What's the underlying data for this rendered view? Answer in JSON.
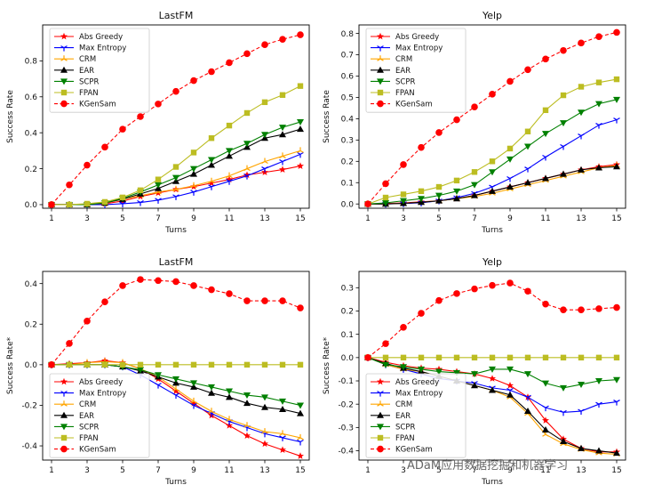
{
  "chart_data": [
    {
      "type": "line",
      "title": "LastFM",
      "xlabel": "Turns",
      "ylabel": "Success Rate",
      "ylim": [
        -0.02,
        1.0
      ],
      "yticks": [
        0.0,
        0.2,
        0.4,
        0.6,
        0.8
      ],
      "xlim": [
        0.5,
        15.5
      ],
      "xticks": [
        1,
        3,
        5,
        7,
        9,
        11,
        13,
        15
      ],
      "grid": false,
      "legend_position": "top-left",
      "x": [
        1,
        2,
        3,
        4,
        5,
        6,
        7,
        8,
        9,
        10,
        11,
        12,
        13,
        14,
        15
      ],
      "series": [
        {
          "name": "Abs Greedy",
          "values": [
            0,
            0,
            0,
            0.005,
            0.02,
            0.045,
            0.065,
            0.085,
            0.1,
            0.12,
            0.14,
            0.165,
            0.18,
            0.195,
            0.215
          ]
        },
        {
          "name": "Max Entropy",
          "values": [
            0,
            0,
            0,
            0,
            0.005,
            0.012,
            0.025,
            0.045,
            0.07,
            0.1,
            0.13,
            0.16,
            0.2,
            0.24,
            0.28
          ]
        },
        {
          "name": "CRM",
          "values": [
            0,
            0,
            0,
            0.01,
            0.03,
            0.05,
            0.07,
            0.085,
            0.105,
            0.13,
            0.16,
            0.2,
            0.24,
            0.27,
            0.3
          ]
        },
        {
          "name": "EAR",
          "values": [
            0,
            0,
            0,
            0.01,
            0.03,
            0.06,
            0.09,
            0.13,
            0.17,
            0.22,
            0.27,
            0.32,
            0.37,
            0.39,
            0.42
          ]
        },
        {
          "name": "SCPR",
          "values": [
            0,
            0,
            0,
            0.01,
            0.035,
            0.07,
            0.11,
            0.15,
            0.2,
            0.25,
            0.3,
            0.34,
            0.39,
            0.43,
            0.46
          ]
        },
        {
          "name": "FPAN",
          "values": [
            0,
            0,
            0.005,
            0.015,
            0.04,
            0.08,
            0.14,
            0.21,
            0.29,
            0.37,
            0.44,
            0.51,
            0.57,
            0.61,
            0.66
          ]
        },
        {
          "name": "KGenSam",
          "values": [
            0,
            0.11,
            0.22,
            0.32,
            0.42,
            0.49,
            0.56,
            0.63,
            0.69,
            0.74,
            0.79,
            0.84,
            0.89,
            0.92,
            0.945
          ]
        }
      ]
    },
    {
      "type": "line",
      "title": "Yelp",
      "xlabel": "Turns",
      "ylabel": "Success Rate",
      "ylim": [
        -0.02,
        0.84
      ],
      "yticks": [
        0.0,
        0.1,
        0.2,
        0.3,
        0.4,
        0.5,
        0.6,
        0.7,
        0.8
      ],
      "xlim": [
        0.5,
        15.5
      ],
      "xticks": [
        1,
        3,
        5,
        7,
        9,
        11,
        13,
        15
      ],
      "grid": false,
      "legend_position": "top-left",
      "x": [
        1,
        2,
        3,
        4,
        5,
        6,
        7,
        8,
        9,
        10,
        11,
        12,
        13,
        14,
        15
      ],
      "series": [
        {
          "name": "Abs Greedy",
          "values": [
            0,
            0.002,
            0.005,
            0.01,
            0.015,
            0.025,
            0.04,
            0.06,
            0.08,
            0.1,
            0.12,
            0.14,
            0.16,
            0.175,
            0.185
          ]
        },
        {
          "name": "Max Entropy",
          "values": [
            0,
            0,
            0.002,
            0.005,
            0.015,
            0.03,
            0.05,
            0.08,
            0.12,
            0.165,
            0.22,
            0.27,
            0.32,
            0.37,
            0.395
          ]
        },
        {
          "name": "CRM",
          "values": [
            0,
            0,
            0.003,
            0.008,
            0.015,
            0.025,
            0.035,
            0.05,
            0.07,
            0.09,
            0.11,
            0.13,
            0.15,
            0.17,
            0.18
          ]
        },
        {
          "name": "EAR",
          "values": [
            0,
            0,
            0.003,
            0.008,
            0.015,
            0.025,
            0.04,
            0.06,
            0.08,
            0.1,
            0.12,
            0.14,
            0.16,
            0.17,
            0.175
          ]
        },
        {
          "name": "SCPR",
          "values": [
            0,
            0.005,
            0.015,
            0.025,
            0.04,
            0.06,
            0.09,
            0.15,
            0.21,
            0.27,
            0.33,
            0.38,
            0.43,
            0.47,
            0.49
          ]
        },
        {
          "name": "FPAN",
          "values": [
            0,
            0.03,
            0.045,
            0.06,
            0.08,
            0.11,
            0.15,
            0.2,
            0.26,
            0.34,
            0.44,
            0.51,
            0.55,
            0.57,
            0.585
          ]
        },
        {
          "name": "KGenSam",
          "values": [
            0,
            0.095,
            0.185,
            0.265,
            0.335,
            0.395,
            0.455,
            0.515,
            0.575,
            0.63,
            0.68,
            0.72,
            0.755,
            0.785,
            0.805
          ]
        }
      ]
    },
    {
      "type": "line",
      "title": "LastFM",
      "xlabel": "Turns",
      "ylabel": "Success Rate*",
      "ylim": [
        -0.47,
        0.46
      ],
      "yticks": [
        -0.4,
        -0.2,
        0.0,
        0.2,
        0.4
      ],
      "xlim": [
        0.5,
        15.5
      ],
      "xticks": [
        1,
        3,
        5,
        7,
        9,
        11,
        13,
        15
      ],
      "grid": false,
      "legend_position": "bottom-left",
      "x": [
        1,
        2,
        3,
        4,
        5,
        6,
        7,
        8,
        9,
        10,
        11,
        12,
        13,
        14,
        15
      ],
      "series": [
        {
          "name": "Abs Greedy",
          "values": [
            0,
            0.005,
            0.01,
            0.02,
            0.01,
            -0.02,
            -0.07,
            -0.13,
            -0.19,
            -0.25,
            -0.3,
            -0.35,
            -0.39,
            -0.42,
            -0.45
          ]
        },
        {
          "name": "Max Entropy",
          "values": [
            0,
            0,
            0,
            0,
            -0.01,
            -0.05,
            -0.1,
            -0.15,
            -0.2,
            -0.24,
            -0.28,
            -0.31,
            -0.34,
            -0.36,
            -0.38
          ]
        },
        {
          "name": "CRM",
          "values": [
            0,
            0,
            0.01,
            0.015,
            0.01,
            -0.02,
            -0.06,
            -0.12,
            -0.18,
            -0.23,
            -0.27,
            -0.3,
            -0.33,
            -0.34,
            -0.36
          ]
        },
        {
          "name": "EAR",
          "values": [
            0,
            0,
            0,
            0,
            -0.01,
            -0.03,
            -0.06,
            -0.09,
            -0.11,
            -0.14,
            -0.16,
            -0.19,
            -0.21,
            -0.22,
            -0.24
          ]
        },
        {
          "name": "SCPR",
          "values": [
            0,
            0,
            0,
            0,
            -0.01,
            -0.025,
            -0.05,
            -0.07,
            -0.09,
            -0.11,
            -0.13,
            -0.15,
            -0.16,
            -0.18,
            -0.2
          ]
        },
        {
          "name": "FPAN",
          "values": [
            0,
            0,
            0,
            0,
            0,
            0,
            0,
            0,
            0,
            0,
            0,
            0,
            0,
            0,
            0
          ]
        },
        {
          "name": "KGenSam",
          "values": [
            0,
            0.105,
            0.215,
            0.31,
            0.39,
            0.42,
            0.415,
            0.41,
            0.39,
            0.37,
            0.35,
            0.315,
            0.315,
            0.315,
            0.28
          ]
        }
      ]
    },
    {
      "type": "line",
      "title": "Yelp",
      "xlabel": "Turns",
      "ylabel": "Success Rate*",
      "ylim": [
        -0.44,
        0.37
      ],
      "yticks": [
        -0.4,
        -0.3,
        -0.2,
        -0.1,
        0.0,
        0.1,
        0.2,
        0.3
      ],
      "xlim": [
        0.5,
        15.5
      ],
      "xticks": [
        1,
        3,
        5,
        7,
        9,
        11,
        13,
        15
      ],
      "grid": false,
      "legend_position": "bottom-left",
      "x": [
        1,
        2,
        3,
        4,
        5,
        6,
        7,
        8,
        9,
        10,
        11,
        12,
        13,
        14,
        15
      ],
      "series": [
        {
          "name": "Abs Greedy",
          "values": [
            0,
            -0.02,
            -0.035,
            -0.045,
            -0.05,
            -0.06,
            -0.07,
            -0.09,
            -0.12,
            -0.17,
            -0.27,
            -0.35,
            -0.39,
            -0.405,
            -0.405
          ]
        },
        {
          "name": "Max Entropy",
          "values": [
            0,
            -0.03,
            -0.05,
            -0.07,
            -0.09,
            -0.1,
            -0.11,
            -0.13,
            -0.14,
            -0.17,
            -0.215,
            -0.235,
            -0.23,
            -0.2,
            -0.19
          ]
        },
        {
          "name": "CRM",
          "values": [
            0,
            -0.03,
            -0.05,
            -0.06,
            -0.08,
            -0.1,
            -0.12,
            -0.14,
            -0.17,
            -0.24,
            -0.33,
            -0.37,
            -0.395,
            -0.41,
            -0.415
          ]
        },
        {
          "name": "EAR",
          "values": [
            0,
            -0.025,
            -0.045,
            -0.06,
            -0.08,
            -0.1,
            -0.12,
            -0.14,
            -0.16,
            -0.23,
            -0.31,
            -0.36,
            -0.39,
            -0.4,
            -0.41
          ]
        },
        {
          "name": "SCPR",
          "values": [
            0,
            -0.03,
            -0.04,
            -0.05,
            -0.06,
            -0.065,
            -0.07,
            -0.05,
            -0.05,
            -0.07,
            -0.11,
            -0.13,
            -0.115,
            -0.1,
            -0.095
          ]
        },
        {
          "name": "FPAN",
          "values": [
            0,
            0,
            0,
            0,
            0,
            0,
            0,
            0,
            0,
            0,
            0,
            0,
            0,
            0,
            0
          ]
        },
        {
          "name": "KGenSam",
          "values": [
            0,
            0.06,
            0.13,
            0.19,
            0.245,
            0.275,
            0.295,
            0.31,
            0.32,
            0.285,
            0.23,
            0.205,
            0.205,
            0.21,
            0.215
          ]
        }
      ]
    }
  ],
  "series_styles": [
    {
      "name": "Abs Greedy",
      "color": "#ff0000",
      "marker": "star",
      "dash": "solid"
    },
    {
      "name": "Max Entropy",
      "color": "#0000ff",
      "marker": "tri-down",
      "dash": "solid"
    },
    {
      "name": "CRM",
      "color": "#ffa500",
      "marker": "tri-up-thin",
      "dash": "solid"
    },
    {
      "name": "EAR",
      "color": "#000000",
      "marker": "triangle-up",
      "dash": "solid"
    },
    {
      "name": "SCPR",
      "color": "#008000",
      "marker": "triangle-down",
      "dash": "solid"
    },
    {
      "name": "FPAN",
      "color": "#bcbd22",
      "marker": "square",
      "dash": "solid"
    },
    {
      "name": "KGenSam",
      "color": "#ff0000",
      "marker": "circle",
      "dash": "dashed"
    }
  ],
  "watermark": "ADaM应用数据挖掘和机器学习"
}
